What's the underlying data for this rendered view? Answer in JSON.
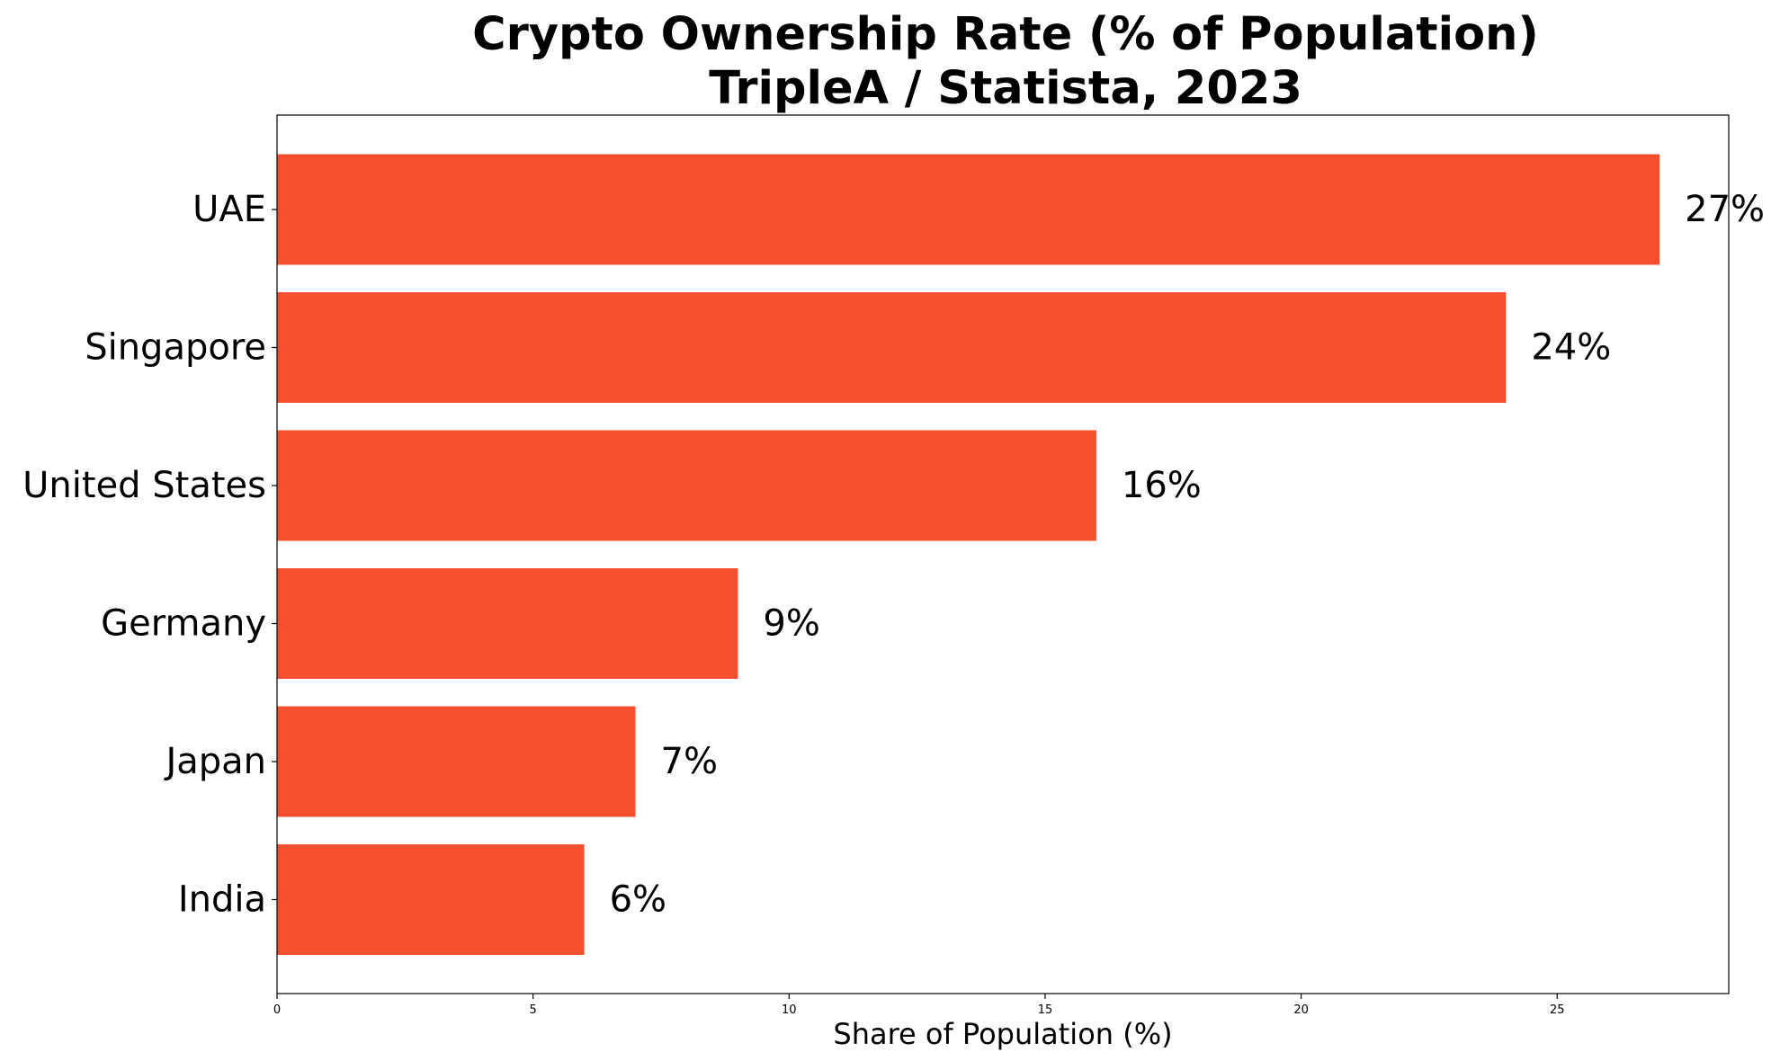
{
  "chart_data": {
    "type": "bar",
    "orientation": "horizontal",
    "title": "Crypto Ownership Rate (% of Population)",
    "subtitle": "TripleA / Statista, 2023",
    "categories": [
      "UAE",
      "Singapore",
      "United States",
      "Germany",
      "Japan",
      "India"
    ],
    "values": [
      27,
      24,
      16,
      9,
      7,
      6
    ],
    "value_labels": [
      "27%",
      "24%",
      "16%",
      "9%",
      "7%",
      "6%"
    ],
    "xlabel": "Share of Population (%)",
    "ylabel": "",
    "xlim": [
      0,
      28.35
    ],
    "xticks": [
      0,
      5,
      10,
      15,
      20,
      25
    ],
    "xtick_labels": [
      "0",
      "5",
      "10",
      "15",
      "20",
      "25"
    ],
    "grid": false,
    "legend": "none",
    "bar_color": "#f44f2f"
  }
}
